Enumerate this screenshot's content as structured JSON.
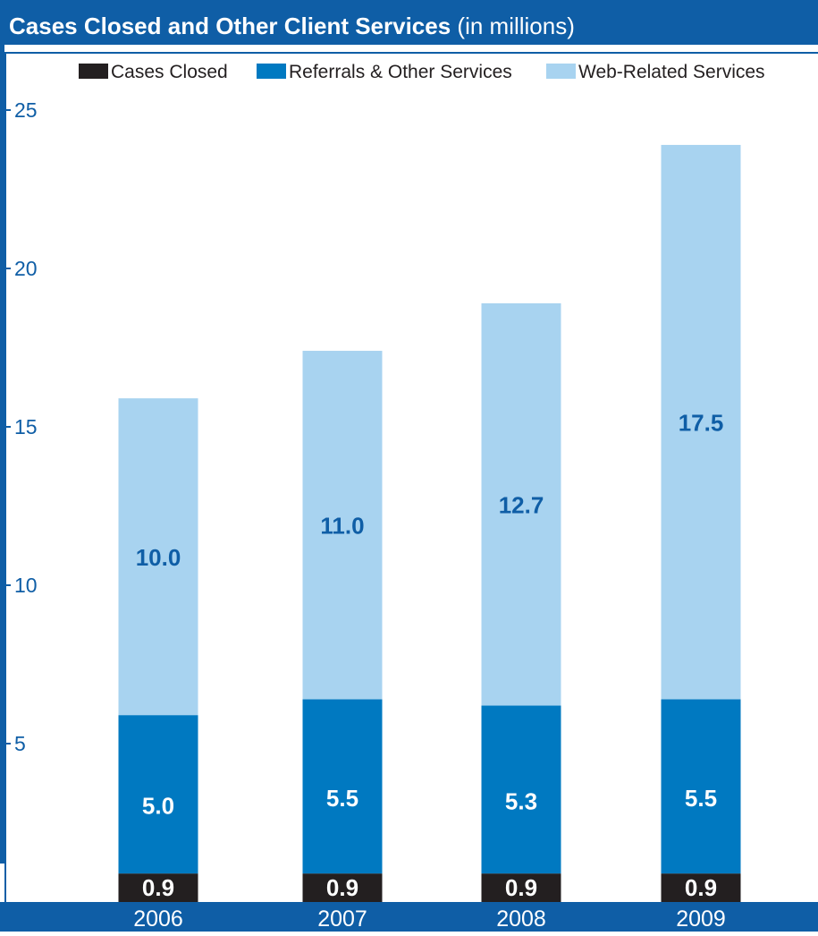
{
  "header": {
    "title_bold": "Cases Closed and Other Client Services",
    "title_rest": " (in millions)"
  },
  "colors": {
    "frame": "#0f5ea6",
    "cases_closed": "#231f20",
    "referrals": "#0079c1",
    "web": "#a8d3f0",
    "axis_text": "#0f5ea6",
    "value_on_dark": "#ffffff",
    "value_on_light": "#0f5ea6"
  },
  "chart_data": {
    "type": "bar",
    "stacked": true,
    "title": "Cases Closed and Other Client Services (in millions)",
    "categories": [
      "2006",
      "2007",
      "2008",
      "2009"
    ],
    "series": [
      {
        "name": "Cases Closed",
        "values": [
          0.9,
          0.9,
          0.9,
          0.9
        ],
        "labels": [
          "0.9",
          "0.9",
          "0.9",
          "0.9"
        ]
      },
      {
        "name": "Referrals & Other Services",
        "values": [
          5.0,
          5.5,
          5.3,
          5.5
        ],
        "labels": [
          "5.0",
          "5.5",
          "5.3",
          "5.5"
        ]
      },
      {
        "name": "Web-Related Services",
        "values": [
          10.0,
          11.0,
          12.7,
          17.5
        ],
        "labels": [
          "10.0",
          "11.0",
          "12.7",
          "17.5"
        ]
      }
    ],
    "ylim": [
      0,
      25
    ],
    "yticks": [
      5,
      10,
      15,
      20,
      25
    ],
    "ytick_labels": [
      "5",
      "10",
      "15",
      "20",
      "25"
    ],
    "legend_position": "top",
    "grid": false
  }
}
